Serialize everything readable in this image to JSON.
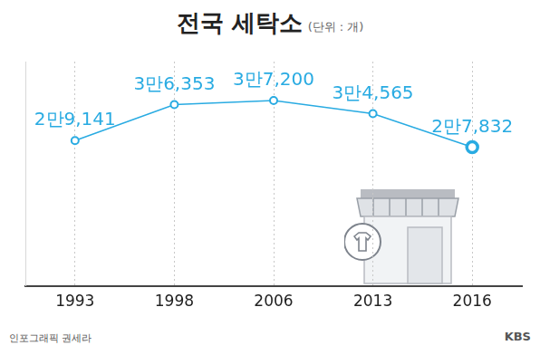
{
  "chart_data": {
    "type": "line",
    "title": "전국 세탁소",
    "subtitle": "(단위 : 개)",
    "categories": [
      "1993",
      "1998",
      "2006",
      "2013",
      "2016"
    ],
    "values": [
      29141,
      36353,
      37200,
      34565,
      27832
    ],
    "value_labels": [
      "2만9,141",
      "3만6,353",
      "3만7,200",
      "3만4,565",
      "2만7,832"
    ],
    "data_labels": true,
    "color": "#29abe2",
    "marker": "circle",
    "ylim": [
      0,
      45000
    ],
    "tick_labels": "x",
    "grid": true,
    "annotations": [
      "인포그래픽 권세라",
      "KBS"
    ]
  }
}
